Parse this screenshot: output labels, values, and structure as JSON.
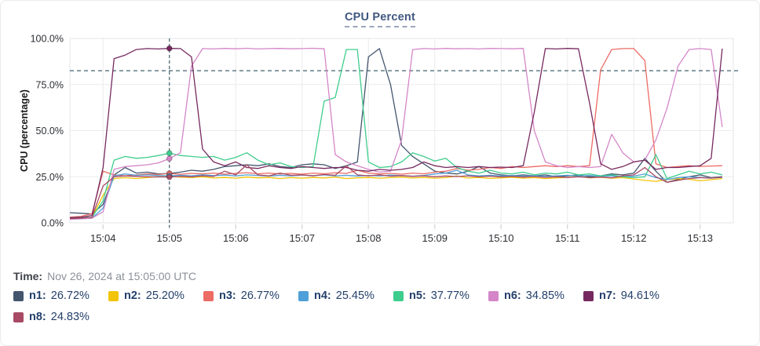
{
  "panel": {
    "title": "CPU Percent"
  },
  "time_row": {
    "label": "Time:",
    "value": "Nov 26, 2024 at 15:05:00 UTC"
  },
  "colors": {
    "grid": "#ececec",
    "plot_border": "#e4e6e9",
    "tick_mark": "#d9dbde",
    "axis_text": "#2c2e33",
    "threshold": "#44606e",
    "crosshair": "#44606e",
    "title_accent": "#3f567f"
  },
  "legend": {
    "items": [
      {
        "name": "n1",
        "value_label": "26.72%",
        "color": "#44566e"
      },
      {
        "name": "n2",
        "value_label": "25.20%",
        "color": "#f2c408"
      },
      {
        "name": "n3",
        "value_label": "26.77%",
        "color": "#ec6b64"
      },
      {
        "name": "n4",
        "value_label": "25.45%",
        "color": "#4fa0d8"
      },
      {
        "name": "n5",
        "value_label": "37.77%",
        "color": "#3ecd8c"
      },
      {
        "name": "n6",
        "value_label": "34.85%",
        "color": "#d486c8"
      },
      {
        "name": "n7",
        "value_label": "94.61%",
        "color": "#76295f"
      },
      {
        "name": "n8",
        "value_label": "24.83%",
        "color": "#a84a64"
      }
    ]
  },
  "chart_data": {
    "type": "line",
    "title": "CPU Percent",
    "xlabel": "",
    "ylabel": "CPU (percentage)",
    "ylim": [
      0,
      100
    ],
    "grid": true,
    "legend_position": "bottom",
    "x_unit": "seconds after 15:00:00 UTC",
    "x_window": [
      210,
      810
    ],
    "threshold_line": {
      "value": 82.5,
      "style": "dashed"
    },
    "crosshair": {
      "x": 300,
      "label": "15:05:00 UTC"
    },
    "yticks": [
      {
        "label": "0.0%",
        "value": 0
      },
      {
        "label": "25.0%",
        "value": 25
      },
      {
        "label": "50.0%",
        "value": 50
      },
      {
        "label": "75.0%",
        "value": 75
      },
      {
        "label": "100.0%",
        "value": 100
      }
    ],
    "xticks": [
      {
        "label": "15:04",
        "x": 240
      },
      {
        "label": "15:05",
        "x": 300
      },
      {
        "label": "15:06",
        "x": 360
      },
      {
        "label": "15:07",
        "x": 420
      },
      {
        "label": "15:08",
        "x": 480
      },
      {
        "label": "15:09",
        "x": 540
      },
      {
        "label": "15:10",
        "x": 600
      },
      {
        "label": "15:11",
        "x": 660
      },
      {
        "label": "15:12",
        "x": 720
      },
      {
        "label": "15:13",
        "x": 780
      }
    ],
    "times": [
      210,
      220,
      230,
      240,
      250,
      260,
      270,
      280,
      290,
      300,
      310,
      320,
      330,
      340,
      350,
      360,
      370,
      380,
      390,
      400,
      410,
      420,
      430,
      440,
      450,
      460,
      470,
      480,
      490,
      500,
      510,
      520,
      530,
      540,
      550,
      560,
      570,
      580,
      590,
      600,
      610,
      620,
      630,
      640,
      650,
      660,
      670,
      680,
      690,
      700,
      710,
      720,
      730,
      740,
      750,
      760,
      770,
      780,
      790,
      800
    ],
    "series": [
      {
        "name": "n1",
        "color": "#44566e",
        "values": [
          5.5,
          5.2,
          4.8,
          10,
          26,
          30,
          27,
          27.5,
          26.5,
          26.72,
          27.5,
          28.5,
          28,
          29,
          30.5,
          31,
          31.5,
          31,
          32,
          30.5,
          30,
          31.5,
          32,
          31.5,
          29.5,
          31,
          33,
          90,
          94.5,
          75,
          42,
          36,
          32,
          28,
          27,
          26.5,
          28,
          30.5,
          27,
          26,
          25.5,
          26,
          25.5,
          26,
          25,
          25.5,
          26,
          25,
          25.5,
          26.5,
          26,
          27,
          35,
          28,
          22,
          23.5,
          25,
          26,
          24.5,
          25
        ]
      },
      {
        "name": "n2",
        "color": "#f2c408",
        "values": [
          2.5,
          2.5,
          3,
          15,
          24,
          24.5,
          24,
          24.5,
          25,
          25.2,
          24.8,
          24.5,
          25,
          24.3,
          24.6,
          24.2,
          24.8,
          24.4,
          24.6,
          24,
          24.5,
          24.2,
          24.6,
          24.3,
          24.8,
          24,
          24.4,
          24.6,
          24.2,
          24.5,
          24.8,
          24.3,
          24.6,
          24.2,
          24.5,
          25.4,
          24.3,
          24.6,
          24.1,
          24.4,
          24.7,
          24.2,
          24.5,
          24,
          24.4,
          24.6,
          25.3,
          24.4,
          24.7,
          24.2,
          24.5,
          23.8,
          23,
          22.5,
          23.5,
          24,
          23.6,
          22.8,
          23.4,
          24
        ]
      },
      {
        "name": "n3",
        "color": "#ec6b64",
        "values": [
          3,
          3.5,
          5,
          28,
          26,
          25.5,
          26,
          26.5,
          26.2,
          26.77,
          26.3,
          26.8,
          26.5,
          27,
          26.4,
          26.8,
          27.2,
          26.6,
          27,
          26.5,
          26.8,
          26.4,
          27,
          26.6,
          27.2,
          26.8,
          28.5,
          27,
          26.5,
          26.8,
          26.4,
          27,
          26.6,
          27.5,
          28,
          29.5,
          28.5,
          29,
          30,
          29.5,
          30.5,
          30,
          30.5,
          31,
          30.5,
          31,
          30.5,
          31,
          83,
          94,
          94.5,
          94.5,
          88,
          32,
          30,
          30.5,
          31,
          30.6,
          30.8,
          31
        ]
      },
      {
        "name": "n4",
        "color": "#4fa0d8",
        "values": [
          2,
          2.2,
          2.5,
          8,
          25.5,
          26.5,
          25.8,
          26,
          25.6,
          25.45,
          25.8,
          25.5,
          26,
          25.6,
          25.9,
          25.5,
          26,
          25.7,
          25.4,
          25.8,
          25.5,
          25.9,
          25.6,
          26,
          25.5,
          25.8,
          25.4,
          25.7,
          25.5,
          25.9,
          25.6,
          25.3,
          25.7,
          26.5,
          27,
          28.5,
          26,
          25.5,
          25.8,
          25.4,
          25.7,
          25.3,
          25.6,
          25.2,
          25.5,
          25.8,
          25.4,
          25.6,
          25.2,
          25.5,
          25,
          25.3,
          26.5,
          24.5,
          23.5,
          24.5,
          25,
          24.6,
          24.3,
          24.6
        ]
      },
      {
        "name": "n5",
        "color": "#3ecd8c",
        "values": [
          2.5,
          2.8,
          3,
          12,
          34,
          36,
          35,
          35.5,
          36.5,
          37.77,
          36.5,
          36,
          35.5,
          36,
          34,
          35.5,
          38,
          34,
          31.5,
          32.5,
          30.5,
          30,
          30.5,
          66,
          68,
          94,
          94,
          33,
          30,
          30.5,
          33,
          38,
          36,
          33.5,
          35,
          30,
          28,
          27,
          28.5,
          27,
          26.5,
          27.5,
          26,
          27,
          26.5,
          27.5,
          26,
          26.5,
          25.5,
          26,
          25,
          24.5,
          25,
          37,
          24,
          26,
          28,
          26.5,
          27.5,
          26
        ]
      },
      {
        "name": "n6",
        "color": "#d486c8",
        "values": [
          2,
          2.2,
          2.5,
          6,
          29,
          30.5,
          31,
          31.5,
          32.5,
          34.85,
          38,
          85,
          94.5,
          94.3,
          94.6,
          94.4,
          94.7,
          94.3,
          94.5,
          94.6,
          94.4,
          94.5,
          94.7,
          94.4,
          37,
          33,
          31,
          29,
          27.5,
          28,
          45,
          94,
          94.5,
          94.3,
          94.6,
          94.4,
          94.5,
          94.3,
          94.6,
          94.5,
          94.4,
          94.6,
          50,
          33,
          31,
          30,
          30.5,
          30,
          30.5,
          48,
          38,
          33,
          34,
          45,
          62,
          85,
          94,
          94.5,
          94,
          52
        ]
      },
      {
        "name": "n7",
        "color": "#76295f",
        "values": [
          2.8,
          3,
          4,
          30,
          89,
          91,
          94,
          94.5,
          94.3,
          94.61,
          94.5,
          90,
          40,
          33,
          31,
          33,
          30,
          29.5,
          31,
          30,
          29.5,
          30.5,
          30,
          29.5,
          30,
          30,
          28.5,
          28,
          29,
          28.5,
          29,
          30,
          33,
          31,
          30,
          30.5,
          30,
          30.5,
          30,
          30.2,
          30,
          31,
          60,
          94.5,
          94.3,
          94.6,
          94.4,
          65,
          32,
          29,
          30.5,
          33,
          34,
          29,
          30,
          30,
          30.5,
          31,
          35,
          94.5
        ]
      },
      {
        "name": "n8",
        "color": "#a84a64",
        "values": [
          2.3,
          2.5,
          3,
          20,
          25,
          25.5,
          25.2,
          25,
          24.9,
          24.83,
          25.2,
          25,
          25.5,
          25.2,
          28,
          26,
          31.5,
          26,
          25.5,
          27,
          25.8,
          26,
          25.5,
          26.2,
          25.8,
          31,
          26,
          25.5,
          26,
          25.3,
          25.6,
          25.2,
          25.5,
          25,
          25.4,
          25.1,
          25.5,
          25,
          25.3,
          24.9,
          25.2,
          24.8,
          25.1,
          24.7,
          25,
          24.6,
          25,
          24.5,
          24.8,
          24.4,
          25.5,
          26,
          30,
          25,
          22,
          23,
          24,
          24.5,
          24.2,
          24.8
        ]
      }
    ]
  }
}
